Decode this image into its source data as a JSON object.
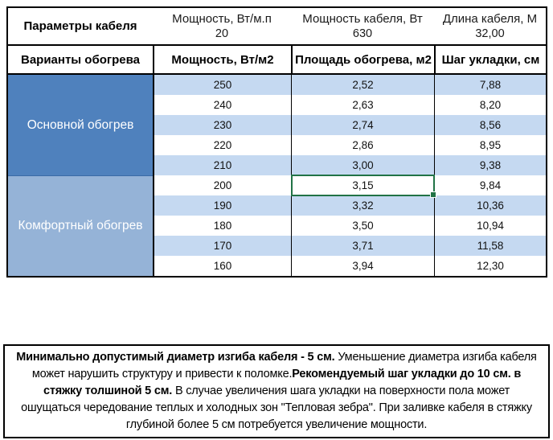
{
  "cable_params": {
    "title": "Параметры кабеля",
    "items": [
      {
        "label": "Мощность, Вт/м.п",
        "value": "20"
      },
      {
        "label": "Мощность кабеля, Вт",
        "value": "630"
      },
      {
        "label": "Длина кабеля, М",
        "value": "32,00"
      }
    ]
  },
  "heating": {
    "headers": [
      "Варианты обогрева",
      "Мощность, Вт/м2",
      "Площадь обогрева, м2",
      "Шаг укладки, см"
    ],
    "sections": [
      {
        "label": "Основной обогрев",
        "rows": [
          [
            "250",
            "2,52",
            "7,88"
          ],
          [
            "240",
            "2,63",
            "8,20"
          ],
          [
            "230",
            "2,74",
            "8,56"
          ],
          [
            "220",
            "2,86",
            "8,95"
          ],
          [
            "210",
            "3,00",
            "9,38"
          ]
        ]
      },
      {
        "label": "Комфортный обогрев",
        "rows": [
          [
            "200",
            "3,15",
            "9,84"
          ],
          [
            "190",
            "3,32",
            "10,36"
          ],
          [
            "180",
            "3,50",
            "10,94"
          ],
          [
            "170",
            "3,71",
            "11,58"
          ],
          [
            "160",
            "3,94",
            "12,30"
          ]
        ]
      }
    ],
    "selection": {
      "value": "3,15",
      "row_power": "200",
      "column": "Площадь обогрева, м2"
    }
  },
  "note": {
    "segments": [
      {
        "bold": true,
        "text": "Минимально допустимый диаметр изгиба кабеля - 5 см."
      },
      {
        "bold": false,
        "text": "  Уменьшение диаметра изгиба кабеля может нарушить структуру и привести к поломке."
      },
      {
        "bold": true,
        "text": "Рекомендуемый шаг укладки до 10 см. в стяжку толшиной 5 см."
      },
      {
        "bold": false,
        "text": " В  случае увеличения шага укладки на поверхности пола может ошущаться чередование теплых и холодных зон \"Тепловая зебра\". При заливке кабеля в стяжку глубиной более 5 см потребуется увеличение мощности."
      }
    ]
  },
  "colors": {
    "section_primary": "#4f81bd",
    "section_comfort": "#95b3d7",
    "row_band": "#c5d9f1",
    "selection_green": "#217346",
    "border": "#000000"
  }
}
